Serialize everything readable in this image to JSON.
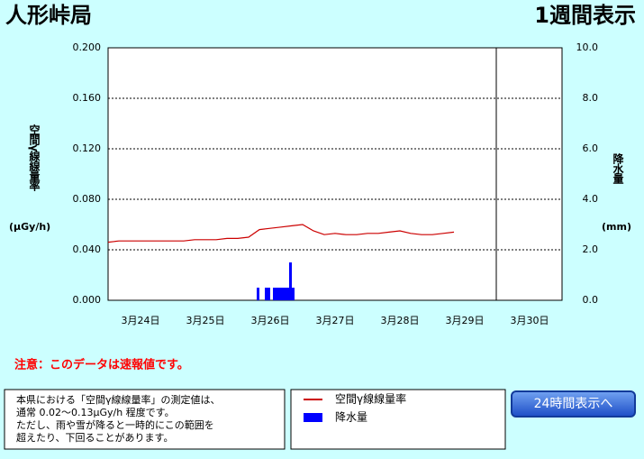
{
  "header": {
    "station": "人形峠局",
    "mode": "1週間表示"
  },
  "chart_data": {
    "type": "line-bar",
    "y_label": "空間γ線線量率",
    "y_unit": "(μGy/h)",
    "y2_label": "降水量",
    "y2_unit": "(mm)",
    "categories": [
      "3月24日",
      "3月25日",
      "3月26日",
      "3月27日",
      "3月28日",
      "3月29日",
      "3月30日"
    ],
    "xlim": [
      0,
      168
    ],
    "ylim": [
      0,
      0.2
    ],
    "yticks": [
      {
        "value": 0,
        "label": "0.000"
      },
      {
        "value": 0.04,
        "label": "0.040"
      },
      {
        "value": 0.08,
        "label": "0.080"
      },
      {
        "value": 0.12,
        "label": "0.120"
      },
      {
        "value": 0.16,
        "label": "0.160"
      },
      {
        "value": 0.2,
        "label": "0.200"
      }
    ],
    "y2lim": [
      0,
      10
    ],
    "y2ticks": [
      {
        "value": 0,
        "label": "0.0"
      },
      {
        "value": 2,
        "label": "2.0"
      },
      {
        "value": 4,
        "label": "4.0"
      },
      {
        "value": 6,
        "label": "6.0"
      },
      {
        "value": 8,
        "label": "8.0"
      },
      {
        "value": 10,
        "label": "10.0"
      }
    ],
    "grid": true,
    "series": [
      {
        "name": "空間γ線線量率",
        "kind": "line",
        "color": "#cc0000",
        "x": [
          0,
          4,
          8,
          12,
          16,
          20,
          24,
          28,
          32,
          36,
          40,
          44,
          48,
          52,
          56,
          60,
          64,
          68,
          72,
          76,
          80,
          84,
          88,
          92,
          96,
          100,
          104,
          108,
          112,
          116,
          120,
          124,
          128
        ],
        "values": [
          0.046,
          0.047,
          0.047,
          0.047,
          0.047,
          0.047,
          0.047,
          0.047,
          0.048,
          0.048,
          0.048,
          0.049,
          0.049,
          0.05,
          0.056,
          0.057,
          0.058,
          0.059,
          0.06,
          0.055,
          0.052,
          0.053,
          0.052,
          0.052,
          0.053,
          0.053,
          0.054,
          0.055,
          0.053,
          0.052,
          0.052,
          0.053,
          0.054
        ]
      },
      {
        "name": "降水量",
        "kind": "bar",
        "axis": "y2",
        "color": "#0000ff",
        "x": [
          55,
          58,
          59,
          61,
          62,
          63,
          64,
          65,
          66,
          67,
          68
        ],
        "values": [
          0.5,
          0.5,
          0.5,
          0.5,
          0.5,
          0.5,
          0.5,
          0.5,
          0.5,
          1.5,
          0.5
        ]
      }
    ]
  },
  "notice": "注意：このデータは速報値です。",
  "note": [
    "本県における「空間γ線線量率」の測定値は、",
    "通常 0.02～0.13μGy/h 程度です。",
    "ただし、雨や雪が降ると一時的にこの範囲を",
    "超えたり、下回ることがあります。"
  ],
  "button": "24時間表示へ"
}
